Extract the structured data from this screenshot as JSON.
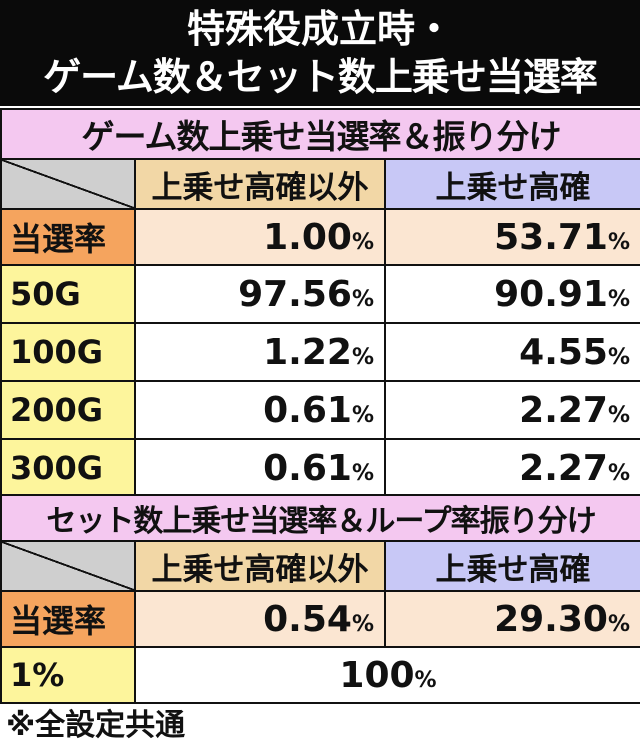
{
  "title": {
    "line1": "特殊役成立時・",
    "line2": "ゲーム数＆セット数上乗せ当選率"
  },
  "game_table": {
    "header": "ゲーム数上乗せ当選率＆振り分け",
    "col_a": "上乗せ高確以外",
    "col_b": "上乗せ高確",
    "rate_label": "当選率",
    "rate_a": "1.00",
    "rate_b": "53.71",
    "pct": "%",
    "rows": [
      {
        "label": "50G",
        "a": "97.56",
        "b": "90.91"
      },
      {
        "label": "100G",
        "a": "1.22",
        "b": "4.55"
      },
      {
        "label": "200G",
        "a": "0.61",
        "b": "2.27"
      },
      {
        "label": "300G",
        "a": "0.61",
        "b": "2.27"
      }
    ]
  },
  "set_table": {
    "header": "セット数上乗せ当選率＆ループ率振り分け",
    "col_a": "上乗せ高確以外",
    "col_b": "上乗せ高確",
    "rate_label": "当選率",
    "rate_a": "0.54",
    "rate_b": "29.30",
    "pct": "%",
    "loop_label": "1%",
    "loop_value": "100"
  },
  "note": "※全設定共通"
}
